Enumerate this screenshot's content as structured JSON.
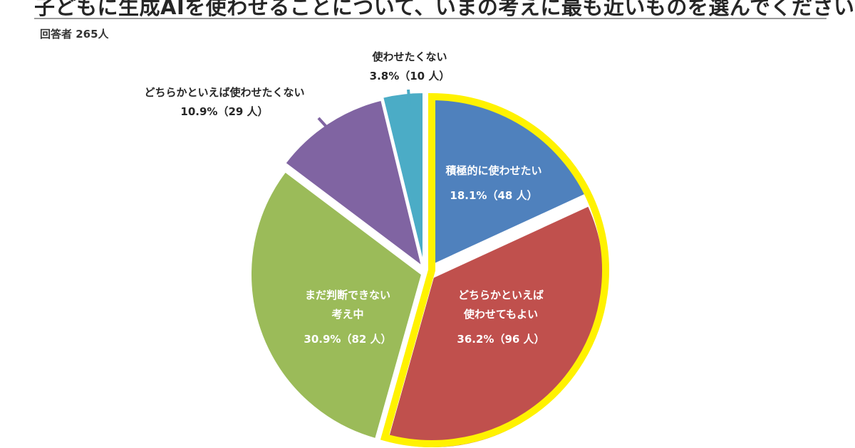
{
  "title": "子どもに生成AIを使わせることについて、いまの考えに最も近いものを選んでください",
  "respondents_label": "回答者 265人",
  "highlight_color": "#FFF200",
  "chart_data": {
    "type": "pie",
    "start": "12 o'clock",
    "direction": "clockwise",
    "slices": [
      {
        "label_lines": [
          "積極的に使わせたい"
        ],
        "value_text": "18.1%（48 人）",
        "percent": 18.1,
        "count": 48,
        "color": "#4F81BD",
        "label_color": "#ffffff",
        "label_position": "inside",
        "highlighted": true
      },
      {
        "label_lines": [
          "どちらかといえば",
          "使わせてもよい"
        ],
        "value_text": "36.2%（96 人）",
        "percent": 36.2,
        "count": 96,
        "color": "#C0504D",
        "label_color": "#ffffff",
        "label_position": "inside",
        "highlighted": true
      },
      {
        "label_lines": [
          "まだ判断できない",
          "考え中"
        ],
        "value_text": "30.9%（82 人）",
        "percent": 30.9,
        "count": 82,
        "color": "#9BBB59",
        "label_color": "#ffffff",
        "label_position": "inside",
        "highlighted": false
      },
      {
        "label_lines": [
          "どちらかといえば使わせたくない"
        ],
        "value_text": "10.9%（29 人）",
        "percent": 10.9,
        "count": 29,
        "color": "#8064A2",
        "label_color": "#262626",
        "label_position": "outside",
        "highlighted": false
      },
      {
        "label_lines": [
          "使わせたくない"
        ],
        "value_text": "3.8%（10 人）",
        "percent": 3.8,
        "count": 10,
        "color": "#4BACC6",
        "label_color": "#262626",
        "label_position": "outside",
        "highlighted": false
      }
    ]
  }
}
